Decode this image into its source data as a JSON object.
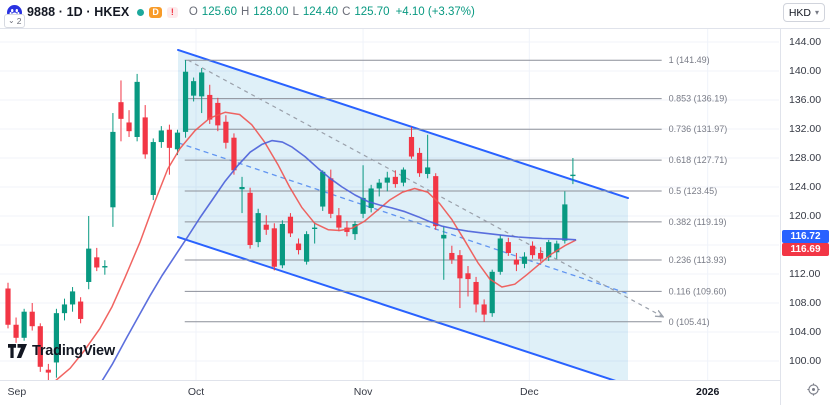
{
  "topbar": {
    "symbol": "9888 · 1D · HKEX",
    "delayed_label": "D",
    "alert_label": "!",
    "ohlc": {
      "o_label": "O",
      "o": "125.60",
      "h_label": "H",
      "h": "128.00",
      "l_label": "L",
      "l": "124.40",
      "c_label": "C",
      "c": "125.70",
      "change": "+4.10 (+3.37%)"
    },
    "currency": "HKD",
    "collapse_count": "2"
  },
  "branding": {
    "logo_text": "TradingView"
  },
  "price_axis": {
    "labels": [
      {
        "t": "144.00",
        "p": 144
      },
      {
        "t": "140.00",
        "p": 140
      },
      {
        "t": "136.00",
        "p": 136
      },
      {
        "t": "132.00",
        "p": 132
      },
      {
        "t": "128.00",
        "p": 128
      },
      {
        "t": "124.00",
        "p": 124
      },
      {
        "t": "120.00",
        "p": 120
      },
      {
        "t": "116.00",
        "p": 116
      },
      {
        "t": "112.00",
        "p": 112
      },
      {
        "t": "108.00",
        "p": 108
      },
      {
        "t": "104.00",
        "p": 104
      },
      {
        "t": "100.00",
        "p": 100
      }
    ],
    "badge_blue": "116.72",
    "badge_red": "116.69"
  },
  "time_axis": {
    "labels": [
      {
        "text": "Sep",
        "i": 1.1,
        "grid": false,
        "bold": false
      },
      {
        "text": "Oct",
        "i": 23.3,
        "grid": true,
        "bold": false
      },
      {
        "text": "Nov",
        "i": 44.0,
        "grid": true,
        "bold": false
      },
      {
        "text": "Dec",
        "i": 64.6,
        "grid": true,
        "bold": false
      },
      {
        "text": "2026",
        "i": 86.7,
        "grid": true,
        "bold": true
      }
    ]
  },
  "colors": {
    "up": "#089981",
    "down": "#f23645",
    "channel_line": "#2962ff",
    "channel_fill": "rgba(41,152,210,0.15)",
    "midline_dashed": "#4c86f0",
    "trend_dashed": "#9aa0aa",
    "ma_fast": "#ef5350",
    "ma_slow": "#4a5fd9",
    "fib_line": "#8c8f99",
    "fib_text": "#787b86",
    "grid": "#f0f3fa",
    "badge_blue": "#2962ff",
    "badge_red": "#f23645"
  },
  "chart_data": {
    "type": "candlestick",
    "symbol": "9888",
    "interval": "1D",
    "exchange": "HKEX",
    "currency": "HKD",
    "title": "9888 · 1D · HKEX",
    "last": {
      "open": 125.6,
      "high": 128.0,
      "low": 124.4,
      "close": 125.7,
      "change": "+4.10 (+3.37%)"
    },
    "ylim": [
      97.5,
      146.0
    ],
    "candles": [
      [
        110.0,
        110.8,
        104.5,
        105.0
      ],
      [
        105.0,
        106.0,
        102.5,
        103.2
      ],
      [
        103.2,
        107.2,
        102.8,
        106.8
      ],
      [
        106.8,
        108.0,
        104.2,
        104.8
      ],
      [
        104.8,
        105.2,
        98.5,
        99.2
      ],
      [
        98.8,
        99.6,
        96.9,
        98.4
      ],
      [
        99.8,
        107.2,
        97.7,
        106.6
      ],
      [
        106.6,
        108.6,
        105.6,
        107.8
      ],
      [
        107.8,
        110.2,
        106.8,
        109.6
      ],
      [
        108.2,
        108.8,
        105.2,
        105.8
      ],
      [
        110.9,
        120.0,
        109.9,
        115.5
      ],
      [
        114.3,
        115.6,
        112.4,
        112.9
      ],
      [
        112.9,
        113.9,
        111.9,
        113.1
      ],
      [
        121.2,
        134.2,
        118.5,
        131.6
      ],
      [
        135.7,
        138.7,
        130.3,
        133.4
      ],
      [
        132.9,
        134.6,
        130.9,
        131.7
      ],
      [
        130.9,
        139.6,
        130.3,
        138.5
      ],
      [
        133.6,
        135.3,
        127.9,
        128.5
      ],
      [
        122.9,
        130.7,
        122.2,
        130.2
      ],
      [
        130.2,
        132.4,
        129.4,
        131.8
      ],
      [
        131.9,
        132.6,
        125.7,
        129.4
      ],
      [
        129.2,
        131.9,
        128.4,
        131.5
      ],
      [
        131.6,
        141.5,
        130.8,
        139.9
      ],
      [
        136.6,
        139.1,
        135.8,
        138.6
      ],
      [
        136.5,
        140.4,
        134.2,
        139.8
      ],
      [
        136.7,
        138.1,
        132.7,
        133.3
      ],
      [
        135.6,
        136.3,
        131.7,
        132.5
      ],
      [
        133.0,
        133.9,
        129.3,
        130.1
      ],
      [
        130.8,
        131.4,
        125.7,
        126.3
      ],
      [
        123.7,
        125.4,
        120.4,
        124.0
      ],
      [
        123.2,
        123.9,
        115.5,
        116.0
      ],
      [
        116.4,
        121.0,
        115.7,
        120.4
      ],
      [
        118.8,
        120.1,
        117.4,
        118.1
      ],
      [
        118.3,
        119.0,
        112.5,
        113.0
      ],
      [
        113.2,
        119.4,
        112.8,
        118.9
      ],
      [
        119.9,
        120.4,
        117.1,
        117.6
      ],
      [
        116.2,
        116.9,
        114.7,
        115.3
      ],
      [
        113.7,
        117.9,
        113.3,
        117.5
      ],
      [
        118.3,
        119.1,
        116.2,
        118.4
      ],
      [
        121.3,
        126.3,
        120.7,
        126.1
      ],
      [
        125.2,
        126.4,
        119.7,
        120.3
      ],
      [
        120.1,
        121.1,
        117.9,
        118.4
      ],
      [
        118.4,
        119.3,
        117.2,
        117.8
      ],
      [
        117.5,
        119.3,
        116.7,
        118.9
      ],
      [
        120.3,
        127.0,
        119.7,
        122.5
      ],
      [
        121.1,
        124.3,
        120.5,
        123.8
      ],
      [
        123.8,
        125.1,
        122.7,
        124.6
      ],
      [
        124.6,
        126.1,
        123.4,
        125.3
      ],
      [
        125.4,
        126.3,
        123.9,
        124.4
      ],
      [
        124.6,
        126.7,
        124.1,
        126.4
      ],
      [
        130.9,
        132.3,
        127.9,
        128.2
      ],
      [
        128.7,
        129.4,
        125.4,
        125.9
      ],
      [
        125.8,
        131.2,
        125.2,
        126.7
      ],
      [
        125.5,
        125.9,
        118.1,
        118.6
      ],
      [
        116.9,
        118.6,
        111.2,
        117.4
      ],
      [
        114.9,
        115.9,
        113.4,
        114.0
      ],
      [
        114.6,
        115.3,
        107.3,
        111.4
      ],
      [
        112.1,
        113.1,
        108.9,
        111.3
      ],
      [
        110.9,
        111.6,
        106.7,
        107.8
      ],
      [
        107.8,
        108.5,
        105.41,
        106.4
      ],
      [
        106.6,
        112.6,
        106.1,
        112.3
      ],
      [
        112.3,
        117.4,
        111.9,
        116.9
      ],
      [
        116.4,
        117.0,
        114.5,
        114.9
      ],
      [
        114.0,
        114.9,
        112.4,
        113.3
      ],
      [
        113.4,
        115.0,
        112.8,
        114.4
      ],
      [
        115.9,
        116.5,
        114.1,
        114.6
      ],
      [
        114.9,
        115.7,
        113.7,
        114.1
      ],
      [
        114.3,
        116.7,
        113.8,
        116.4
      ],
      [
        115.0,
        116.6,
        114.1,
        116.2
      ],
      [
        116.6,
        123.4,
        116.2,
        121.6
      ],
      [
        125.6,
        128.0,
        124.4,
        125.7
      ]
    ],
    "ma_fast": {
      "name": "fast moving average (red)",
      "last": 116.69,
      "points": [
        [
          5.8,
          97.2
        ],
        [
          7.7,
          99.0
        ],
        [
          9.5,
          101.5
        ],
        [
          11.4,
          104.5
        ],
        [
          12.9,
          107.5
        ],
        [
          14.5,
          111.5
        ],
        [
          16.4,
          116.5
        ],
        [
          18.2,
          122.0
        ],
        [
          19.8,
          126.5
        ],
        [
          21.3,
          129.3
        ],
        [
          23.2,
          131.8
        ],
        [
          25.0,
          133.5
        ],
        [
          26.9,
          134.3
        ],
        [
          28.7,
          134.0
        ],
        [
          30.2,
          132.6
        ],
        [
          31.8,
          130.2
        ],
        [
          33.5,
          127.0
        ],
        [
          34.9,
          124.0
        ],
        [
          36.4,
          121.2
        ],
        [
          38.0,
          119.0
        ],
        [
          39.7,
          118.1
        ],
        [
          41.1,
          118.0
        ],
        [
          42.6,
          118.3
        ],
        [
          44.2,
          119.3
        ],
        [
          45.8,
          120.8
        ],
        [
          47.3,
          122.2
        ],
        [
          48.9,
          123.3
        ],
        [
          50.4,
          123.8
        ],
        [
          52.0,
          123.3
        ],
        [
          53.5,
          121.7
        ],
        [
          55.0,
          119.5
        ],
        [
          56.6,
          116.6
        ],
        [
          58.2,
          113.6
        ],
        [
          59.7,
          111.3
        ],
        [
          61.2,
          110.2
        ],
        [
          62.8,
          110.6
        ],
        [
          64.3,
          111.9
        ],
        [
          65.9,
          113.4
        ],
        [
          67.4,
          114.8
        ],
        [
          69.0,
          115.9
        ],
        [
          70.4,
          116.69
        ]
      ]
    },
    "ma_slow": {
      "name": "slow moving average (blue)",
      "last": 116.72,
      "points": [
        [
          11.4,
          96.8
        ],
        [
          12.9,
          99.5
        ],
        [
          14.5,
          102.8
        ],
        [
          16.1,
          106.0
        ],
        [
          17.6,
          109.0
        ],
        [
          19.1,
          111.8
        ],
        [
          20.7,
          114.5
        ],
        [
          22.3,
          117.2
        ],
        [
          23.8,
          119.8
        ],
        [
          25.3,
          122.2
        ],
        [
          26.9,
          124.8
        ],
        [
          28.5,
          127.0
        ],
        [
          30.0,
          128.8
        ],
        [
          31.5,
          129.9
        ],
        [
          32.7,
          130.4
        ],
        [
          34.0,
          130.2
        ],
        [
          35.2,
          129.5
        ],
        [
          36.8,
          128.2
        ],
        [
          38.4,
          126.6
        ],
        [
          39.9,
          125.2
        ],
        [
          41.4,
          124.0
        ],
        [
          43.0,
          122.9
        ],
        [
          44.6,
          122.0
        ],
        [
          46.1,
          121.5
        ],
        [
          47.6,
          121.1
        ],
        [
          49.2,
          120.6
        ],
        [
          50.8,
          119.9
        ],
        [
          52.3,
          119.2
        ],
        [
          53.8,
          118.6
        ],
        [
          55.4,
          118.2
        ],
        [
          57.0,
          117.9
        ],
        [
          58.5,
          117.7
        ],
        [
          60.0,
          117.5
        ],
        [
          61.6,
          117.3
        ],
        [
          63.2,
          117.1
        ],
        [
          64.7,
          117.0
        ],
        [
          66.2,
          116.9
        ],
        [
          67.8,
          116.85
        ],
        [
          69.4,
          116.78
        ],
        [
          70.4,
          116.72
        ]
      ]
    },
    "channel": {
      "top": {
        "i1": 21.07,
        "p1": 142.9,
        "i2": 76.83,
        "p2": 122.48
      },
      "bottom": {
        "i1": 21.07,
        "p1": 117.1,
        "i2": 76.83,
        "p2": 96.69
      },
      "midline_dashed": {
        "i1": 21.07,
        "p1": 130.1,
        "i2": 76.83,
        "p2": 109.3
      }
    },
    "trendline_dashed": {
      "i1": 22.3,
      "p1": 141.5,
      "i2": 81.0,
      "p2": 106.2,
      "arrow_end": true
    },
    "fib": {
      "x_start_i": 21.9,
      "x_end_i": 81.0,
      "levels": [
        {
          "ratio": "1",
          "price": 141.49,
          "label": "1 (141.49)"
        },
        {
          "ratio": "0.853",
          "price": 136.19,
          "label": "0.853 (136.19)"
        },
        {
          "ratio": "0.736",
          "price": 131.97,
          "label": "0.736 (131.97)"
        },
        {
          "ratio": "0.618",
          "price": 127.71,
          "label": "0.618 (127.71)"
        },
        {
          "ratio": "0.5",
          "price": 123.45,
          "label": "0.5 (123.45)"
        },
        {
          "ratio": "0.382",
          "price": 119.19,
          "label": "0.382 (119.19)"
        },
        {
          "ratio": "0.236",
          "price": 113.93,
          "label": "0.236 (113.93)"
        },
        {
          "ratio": "0.116",
          "price": 109.6,
          "label": "0.116 (109.60)"
        },
        {
          "ratio": "0",
          "price": 105.41,
          "label": "0 (105.41)"
        }
      ]
    },
    "price_gridlines": [
      144,
      140,
      136,
      132,
      128,
      124,
      120,
      116,
      112,
      108,
      104,
      100
    ]
  }
}
